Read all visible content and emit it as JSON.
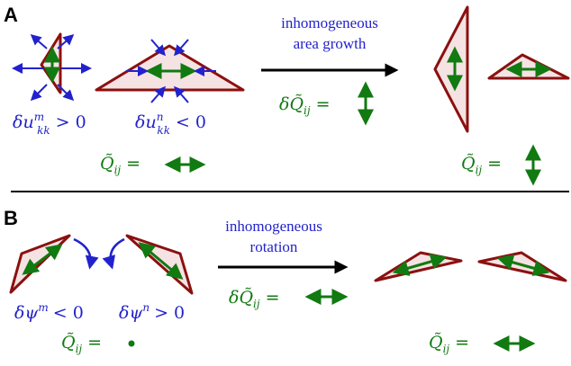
{
  "panel_a": {
    "letter": "A",
    "process_line1": "inhomogeneous",
    "process_line2": "area growth",
    "label_m_delta": "δu",
    "label_m_sup": "m",
    "label_m_sub": "kk",
    "label_m_rel": "> 0",
    "label_n_delta": "δu",
    "label_n_sup": "n",
    "label_n_sub": "kk",
    "label_n_rel": "< 0",
    "dq_label": "δQ̃",
    "dq_sub": "ij",
    "eq": "=",
    "q_left": "Q̃",
    "q_left_sub": "ij",
    "q_right": "Q̃",
    "q_right_sub": "ij"
  },
  "panel_b": {
    "letter": "B",
    "process_line1": "inhomogeneous",
    "process_line2": "rotation",
    "label_m": "δψ",
    "label_m_sup": "m",
    "label_m_rel": "< 0",
    "label_n": "δψ",
    "label_n_sup": "n",
    "label_n_rel": "> 0",
    "dq_label": "δQ̃",
    "dq_sub": "ij",
    "eq": "=",
    "q_left": "Q̃",
    "q_left_sub": "ij",
    "q_right": "Q̃",
    "q_right_sub": "ij"
  },
  "colors": {
    "triangle_fill": "#f5e3e3",
    "triangle_stroke": "#8b1010",
    "green": "#117a11",
    "blue": "#2222cc",
    "black": "#000000"
  }
}
